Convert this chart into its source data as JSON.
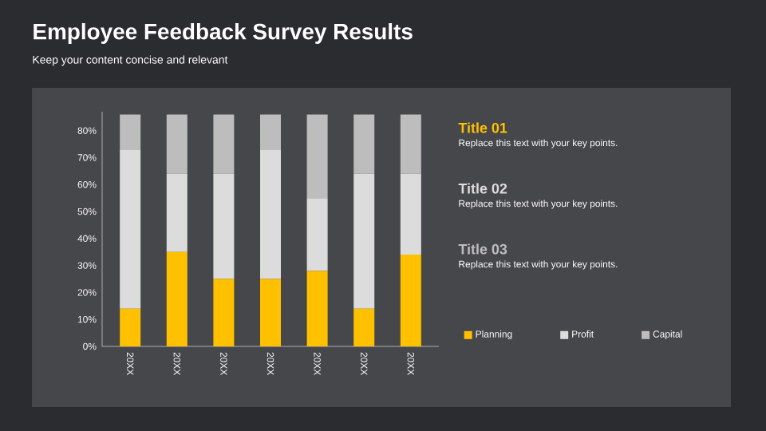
{
  "chart_data": {
    "type": "bar",
    "stacked": true,
    "title": "Employee Feedback Survey Results",
    "subtitle": "Keep your content concise and relevant",
    "categories": [
      "20XX",
      "20XX",
      "20XX",
      "20XX",
      "20XX",
      "20XX",
      "20XX"
    ],
    "series": [
      {
        "name": "Planning",
        "color": "#ffc000",
        "values": [
          14,
          35,
          25,
          25,
          28,
          14,
          34
        ]
      },
      {
        "name": "Profit",
        "color": "#dcdcdc",
        "values": [
          59,
          29,
          39,
          48,
          27,
          50,
          30
        ]
      },
      {
        "name": "Capital",
        "color": "#bdbdbd",
        "values": [
          13,
          22,
          22,
          13,
          31,
          22,
          22
        ]
      }
    ],
    "ylim": [
      0,
      87
    ],
    "yticks": [
      {
        "value": 0,
        "label": "0%"
      },
      {
        "value": 10,
        "label": "10%"
      },
      {
        "value": 20,
        "label": "20%"
      },
      {
        "value": 30,
        "label": "30%"
      },
      {
        "value": 40,
        "label": "40%"
      },
      {
        "value": 50,
        "label": "50%"
      },
      {
        "value": 60,
        "label": "60%"
      },
      {
        "value": 70,
        "label": "70%"
      },
      {
        "value": 80,
        "label": "80%"
      }
    ],
    "legend": "bottom right",
    "annotations": [
      "Title 01",
      "Replace this text with your key points.",
      "Title 02",
      "Replace this text with your key points.",
      "Title 03",
      "Replace this text with your key points."
    ]
  }
}
